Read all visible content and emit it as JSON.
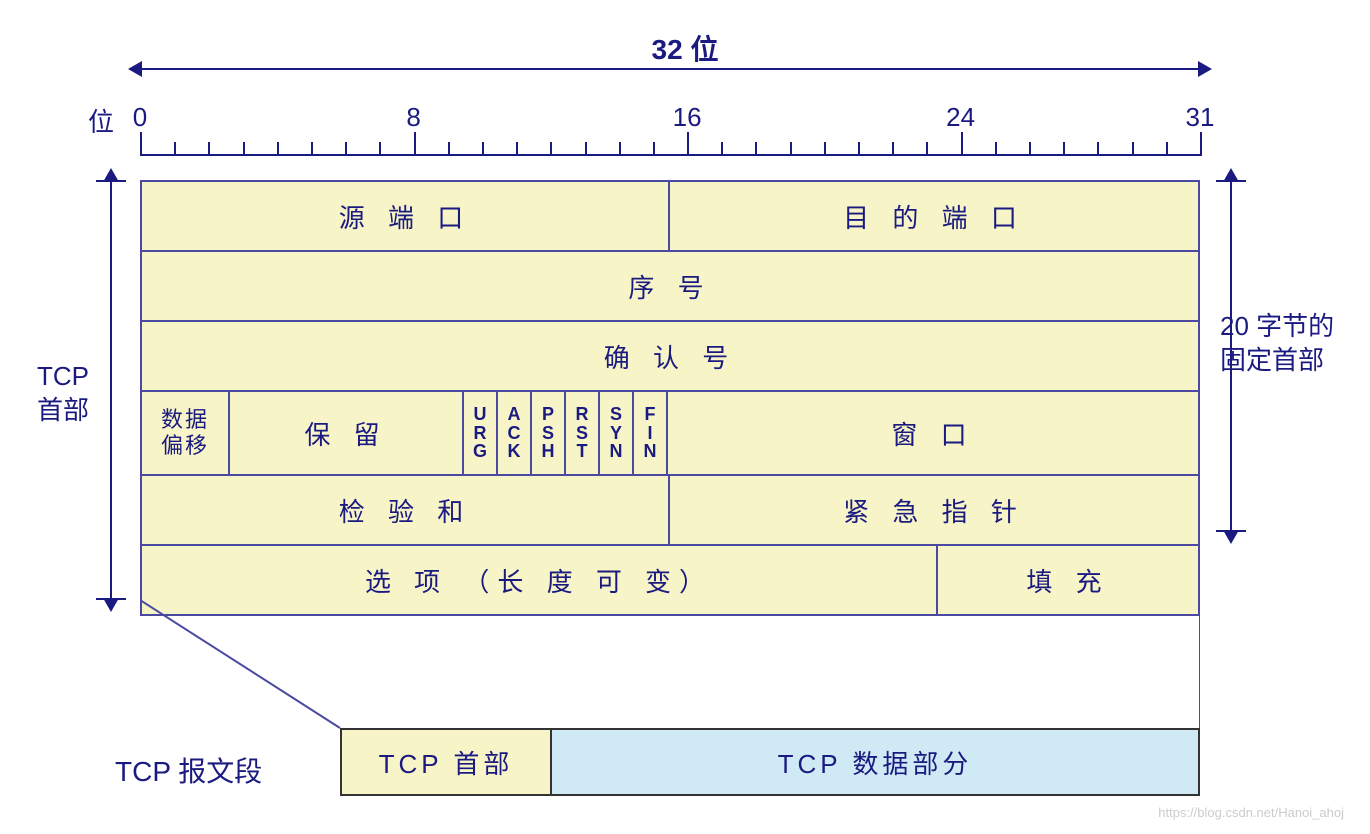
{
  "colors": {
    "text": "#1a1a80",
    "border": "#4a4aa0",
    "header_fill": "#f7f5c8",
    "data_fill": "#cfeaf5",
    "background": "#ffffff",
    "watermark": "#cccccc"
  },
  "typography": {
    "body_fontsize_pt": 20,
    "flag_fontsize_pt": 14,
    "font_family": "Microsoft YaHei / SimSun"
  },
  "ruler": {
    "label": "位",
    "total_bits": 32,
    "major_ticks": [
      0,
      8,
      16,
      24,
      31
    ],
    "minor_tick_every": 1,
    "width_label": "32 位"
  },
  "dim_labels": {
    "left": "TCP\n首部",
    "right": "20 字节的\n固定首部"
  },
  "header": {
    "type": "table",
    "rows": [
      {
        "cells": [
          {
            "label": "源 端 口",
            "bits": 16
          },
          {
            "label": "目 的 端 口",
            "bits": 16
          }
        ]
      },
      {
        "cells": [
          {
            "label": "序   号",
            "bits": 32
          }
        ]
      },
      {
        "cells": [
          {
            "label": "确   认   号",
            "bits": 32
          }
        ]
      },
      {
        "cells": [
          {
            "label": "数据\n偏移",
            "bits": 4,
            "kind": "dataoff"
          },
          {
            "label": "保   留",
            "bits": 6,
            "kind": "reserved"
          },
          {
            "label": "U\nR\nG",
            "bits": 1,
            "kind": "flag"
          },
          {
            "label": "A\nC\nK",
            "bits": 1,
            "kind": "flag"
          },
          {
            "label": "P\nS\nH",
            "bits": 1,
            "kind": "flag"
          },
          {
            "label": "R\nS\nT",
            "bits": 1,
            "kind": "flag"
          },
          {
            "label": "S\nY\nN",
            "bits": 1,
            "kind": "flag"
          },
          {
            "label": "F\nI\nN",
            "bits": 1,
            "kind": "flag"
          },
          {
            "label": "窗   口",
            "bits": 16
          }
        ]
      },
      {
        "cells": [
          {
            "label": "检   验   和",
            "bits": 16
          },
          {
            "label": "紧 急 指 针",
            "bits": 16
          }
        ]
      },
      {
        "cells": [
          {
            "label": "选   项   （长 度 可 变）",
            "bits": 24,
            "kind": "options"
          },
          {
            "label": "填   充",
            "bits": 8,
            "kind": "padding"
          }
        ]
      }
    ],
    "fixed_rows": 5
  },
  "segment": {
    "label": "TCP 报文段",
    "parts": [
      {
        "label": "TCP 首部",
        "fill": "#f7f5c8"
      },
      {
        "label": "TCP 数据部分",
        "fill": "#cfeaf5"
      }
    ]
  },
  "watermark": "https://blog.csdn.net/Hanoi_ahoj"
}
